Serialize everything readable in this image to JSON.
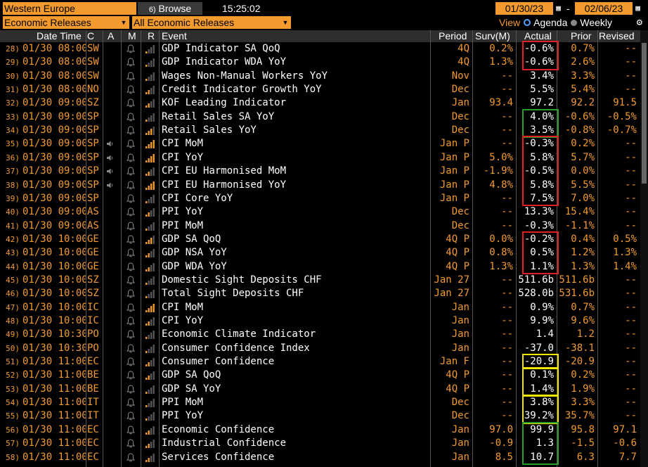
{
  "toolbar": {
    "region": "Western Europe",
    "browse_label": "Browse",
    "browse_icon": "6)",
    "time": "15:25:02",
    "start_date": "01/30/23",
    "end_date": "02/06/23",
    "date_sep": "-",
    "filter_left": "Economic Releases",
    "filter_right": "All Economic Releases",
    "view_label": "View",
    "view_agenda": "Agenda",
    "view_weekly": "Weekly"
  },
  "columns": {
    "datetime": "Date Time",
    "country": "C",
    "alert": "A",
    "m": "M",
    "r": "R",
    "event": "Event",
    "period": "Period",
    "survey": "Surv(M)",
    "actual": "Actual",
    "prior": "Prior",
    "revised": "Revised"
  },
  "colors": {
    "accent": "#f29a2e",
    "box_red": "#e02020",
    "box_green": "#2aa02a",
    "box_yellow": "#f2e600"
  },
  "rows": [
    {
      "n": "28)",
      "dt": "01/30 08:00",
      "c": "SW",
      "spk": false,
      "rel": 1,
      "event": "GDP Indicator SA QoQ",
      "period": "4Q",
      "surv": "0.2%",
      "actual": "-0.6%",
      "prior": "0.7%",
      "rev": "--"
    },
    {
      "n": "29)",
      "dt": "01/30 08:00",
      "c": "SW",
      "spk": false,
      "rel": 1,
      "event": "GDP Indicator WDA YoY",
      "period": "4Q",
      "surv": "1.3%",
      "actual": "-0.6%",
      "prior": "2.6%",
      "rev": "--"
    },
    {
      "n": "30)",
      "dt": "01/30 08:00",
      "c": "SW",
      "spk": false,
      "rel": 1,
      "event": "Wages Non-Manual Workers YoY",
      "period": "Nov",
      "surv": "--",
      "actual": "3.4%",
      "prior": "3.3%",
      "rev": "--"
    },
    {
      "n": "31)",
      "dt": "01/30 08:00",
      "c": "NO",
      "spk": false,
      "rel": 2,
      "event": "Credit Indicator Growth YoY",
      "period": "Dec",
      "surv": "--",
      "actual": "5.5%",
      "prior": "5.4%",
      "rev": "--"
    },
    {
      "n": "32)",
      "dt": "01/30 09:00",
      "c": "SZ",
      "spk": false,
      "rel": 2,
      "event": "KOF Leading Indicator",
      "period": "Jan",
      "surv": "93.4",
      "actual": "97.2",
      "prior": "92.2",
      "rev": "91.5"
    },
    {
      "n": "33)",
      "dt": "01/30 09:00",
      "c": "SP",
      "spk": false,
      "rel": 1,
      "event": "Retail Sales SA YoY",
      "period": "Dec",
      "surv": "--",
      "actual": "4.0%",
      "prior": "-0.6%",
      "rev": "-0.5%"
    },
    {
      "n": "34)",
      "dt": "01/30 09:00",
      "c": "SP",
      "spk": false,
      "rel": 3,
      "event": "Retail Sales YoY",
      "period": "Dec",
      "surv": "--",
      "actual": "3.5%",
      "prior": "-0.8%",
      "rev": "-0.7%"
    },
    {
      "n": "35)",
      "dt": "01/30 09:00",
      "c": "SP",
      "spk": true,
      "rel": 4,
      "event": "CPI MoM",
      "period": "Jan P",
      "surv": "--",
      "actual": "-0.3%",
      "prior": "0.2%",
      "rev": "--"
    },
    {
      "n": "36)",
      "dt": "01/30 09:00",
      "c": "SP",
      "spk": true,
      "rel": 4,
      "event": "CPI YoY",
      "period": "Jan P",
      "surv": "5.0%",
      "actual": "5.8%",
      "prior": "5.7%",
      "rev": "--"
    },
    {
      "n": "37)",
      "dt": "01/30 09:00",
      "c": "SP",
      "spk": true,
      "rel": 2,
      "event": "CPI EU Harmonised MoM",
      "period": "Jan P",
      "surv": "-1.9%",
      "actual": "-0.5%",
      "prior": "0.0%",
      "rev": "--"
    },
    {
      "n": "38)",
      "dt": "01/30 09:00",
      "c": "SP",
      "spk": true,
      "rel": 4,
      "event": "CPI EU Harmonised YoY",
      "period": "Jan P",
      "surv": "4.8%",
      "actual": "5.8%",
      "prior": "5.5%",
      "rev": "--"
    },
    {
      "n": "39)",
      "dt": "01/30 09:00",
      "c": "SP",
      "spk": false,
      "rel": 1,
      "event": "CPI Core YoY",
      "period": "Jan P",
      "surv": "--",
      "actual": "7.5%",
      "prior": "7.0%",
      "rev": "--"
    },
    {
      "n": "40)",
      "dt": "01/30 09:00",
      "c": "AS",
      "spk": false,
      "rel": 2,
      "event": "PPI YoY",
      "period": "Dec",
      "surv": "--",
      "actual": "13.3%",
      "prior": "15.4%",
      "rev": "--"
    },
    {
      "n": "41)",
      "dt": "01/30 09:00",
      "c": "AS",
      "spk": false,
      "rel": 1,
      "event": "PPI MoM",
      "period": "Dec",
      "surv": "--",
      "actual": "-0.3%",
      "prior": "-1.1%",
      "rev": "--"
    },
    {
      "n": "42)",
      "dt": "01/30 10:00",
      "c": "GE",
      "spk": false,
      "rel": 3,
      "event": "GDP SA QoQ",
      "period": "4Q P",
      "surv": "0.0%",
      "actual": "-0.2%",
      "prior": "0.4%",
      "rev": "0.5%"
    },
    {
      "n": "43)",
      "dt": "01/30 10:00",
      "c": "GE",
      "spk": false,
      "rel": 2,
      "event": "GDP NSA YoY",
      "period": "4Q P",
      "surv": "0.8%",
      "actual": "0.5%",
      "prior": "1.2%",
      "rev": "1.3%"
    },
    {
      "n": "44)",
      "dt": "01/30 10:00",
      "c": "GE",
      "spk": false,
      "rel": 2,
      "event": "GDP WDA YoY",
      "period": "4Q P",
      "surv": "1.3%",
      "actual": "1.1%",
      "prior": "1.3%",
      "rev": "1.4%"
    },
    {
      "n": "45)",
      "dt": "01/30 10:00",
      "c": "SZ",
      "spk": false,
      "rel": 1,
      "event": "Domestic Sight Deposits CHF",
      "period": "Jan 27",
      "surv": "--",
      "actual": "511.6b",
      "prior": "511.6b",
      "rev": "--"
    },
    {
      "n": "46)",
      "dt": "01/30 10:00",
      "c": "SZ",
      "spk": false,
      "rel": 1,
      "event": "Total Sight Deposits CHF",
      "period": "Jan 27",
      "surv": "--",
      "actual": "528.0b",
      "prior": "531.6b",
      "rev": "--"
    },
    {
      "n": "47)",
      "dt": "01/30 10:00",
      "c": "IC",
      "spk": false,
      "rel": 4,
      "event": "CPI MoM",
      "period": "Jan",
      "surv": "--",
      "actual": "0.9%",
      "prior": "0.7%",
      "rev": "--"
    },
    {
      "n": "48)",
      "dt": "01/30 10:00",
      "c": "IC",
      "spk": false,
      "rel": 2,
      "event": "CPI YoY",
      "period": "Jan",
      "surv": "--",
      "actual": "9.9%",
      "prior": "9.6%",
      "rev": "--"
    },
    {
      "n": "49)",
      "dt": "01/30 10:30",
      "c": "PO",
      "spk": false,
      "rel": 1,
      "event": "Economic Climate Indicator",
      "period": "Jan",
      "surv": "--",
      "actual": "1.4",
      "prior": "1.2",
      "rev": "--"
    },
    {
      "n": "50)",
      "dt": "01/30 10:30",
      "c": "PO",
      "spk": false,
      "rel": 1,
      "event": "Consumer Confidence Index",
      "period": "Jan",
      "surv": "--",
      "actual": "-37.0",
      "prior": "-38.1",
      "rev": "--"
    },
    {
      "n": "51)",
      "dt": "01/30 11:00",
      "c": "EC",
      "spk": false,
      "rel": 2,
      "event": "Consumer Confidence",
      "period": "Jan F",
      "surv": "--",
      "actual": "-20.9",
      "prior": "-20.9",
      "rev": "--"
    },
    {
      "n": "52)",
      "dt": "01/30 11:00",
      "c": "BE",
      "spk": false,
      "rel": 2,
      "event": "GDP SA QoQ",
      "period": "4Q P",
      "surv": "--",
      "actual": "0.1%",
      "prior": "0.2%",
      "rev": "--"
    },
    {
      "n": "53)",
      "dt": "01/30 11:00",
      "c": "BE",
      "spk": false,
      "rel": 1,
      "event": "GDP SA YoY",
      "period": "4Q P",
      "surv": "--",
      "actual": "1.4%",
      "prior": "1.9%",
      "rev": "--"
    },
    {
      "n": "54)",
      "dt": "01/30 11:00",
      "c": "IT",
      "spk": false,
      "rel": 1,
      "event": "PPI MoM",
      "period": "Dec",
      "surv": "--",
      "actual": "3.8%",
      "prior": "3.3%",
      "rev": "--"
    },
    {
      "n": "55)",
      "dt": "01/30 11:00",
      "c": "IT",
      "spk": false,
      "rel": 1,
      "event": "PPI YoY",
      "period": "Dec",
      "surv": "--",
      "actual": "39.2%",
      "prior": "35.7%",
      "rev": "--"
    },
    {
      "n": "56)",
      "dt": "01/30 11:00",
      "c": "EC",
      "spk": false,
      "rel": 2,
      "event": "Economic Confidence",
      "period": "Jan",
      "surv": "97.0",
      "actual": "99.9",
      "prior": "95.8",
      "rev": "97.1"
    },
    {
      "n": "57)",
      "dt": "01/30 11:00",
      "c": "EC",
      "spk": false,
      "rel": 2,
      "event": "Industrial Confidence",
      "period": "Jan",
      "surv": "-0.9",
      "actual": "1.3",
      "prior": "-1.5",
      "rev": "-0.6"
    },
    {
      "n": "58)",
      "dt": "01/30 11:00",
      "c": "EC",
      "spk": false,
      "rel": 2,
      "event": "Services Confidence",
      "period": "Jan",
      "surv": "8.5",
      "actual": "10.7",
      "prior": "6.3",
      "rev": "7.7"
    }
  ],
  "highlights": [
    {
      "color": "red",
      "from_row": 0,
      "to_row": 1
    },
    {
      "color": "green",
      "from_row": 5,
      "to_row": 6
    },
    {
      "color": "red",
      "from_row": 7,
      "to_row": 11
    },
    {
      "color": "red",
      "from_row": 14,
      "to_row": 16
    },
    {
      "color": "yellow",
      "from_row": 23,
      "to_row": 23
    },
    {
      "color": "yellow",
      "from_row": 24,
      "to_row": 25
    },
    {
      "color": "yellow",
      "from_row": 26,
      "to_row": 27
    },
    {
      "color": "green",
      "from_row": 28,
      "to_row": 30
    }
  ]
}
